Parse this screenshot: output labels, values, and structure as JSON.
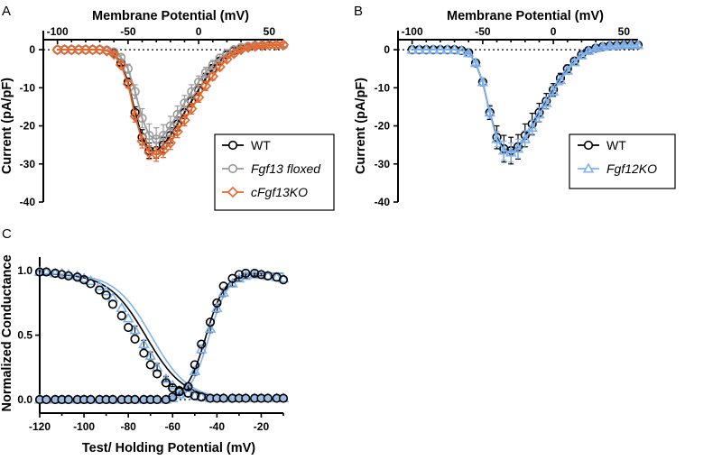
{
  "panel_letters": [
    "A",
    "B",
    "C"
  ],
  "colors": {
    "wt": "#000000",
    "floxed": "#9a9a9a",
    "cko": "#e8662a",
    "ko12": "#7fb2ee",
    "fill_c": "#9dbcdf"
  },
  "chart_data": [
    {
      "type": "line",
      "panel": "A",
      "xlabel": "Membrane Potential (mV)",
      "ylabel": "Current (pA/pF)",
      "xlim": [
        -110,
        60
      ],
      "ylim": [
        -40,
        5
      ],
      "xticks": [
        -100,
        -50,
        0,
        50
      ],
      "yticks": [
        0,
        -10,
        -20,
        -30,
        -40
      ],
      "x_axis_position": "top",
      "zero_line": "dotted",
      "legend": "bottom-right",
      "x": [
        -100,
        -95,
        -90,
        -85,
        -80,
        -75,
        -70,
        -65,
        -60,
        -55,
        -50,
        -45,
        -40,
        -35,
        -30,
        -25,
        -20,
        -15,
        -10,
        -5,
        0,
        5,
        10,
        15,
        20,
        25,
        30,
        35,
        40,
        45,
        50,
        55,
        60
      ],
      "series": [
        {
          "name": "WT",
          "marker": "circle",
          "color": "#000000",
          "values": [
            0,
            0,
            0,
            0,
            0,
            0,
            0,
            -0.2,
            -0.8,
            -3.5,
            -8.5,
            -16.5,
            -23,
            -26.5,
            -26.5,
            -25,
            -22.5,
            -19.5,
            -16.5,
            -13.5,
            -10.5,
            -7.5,
            -5,
            -3,
            -1.3,
            -0.2,
            0.4,
            0.8,
            1,
            1.1,
            1.2,
            1.2,
            1.2
          ],
          "errors": [
            0,
            0,
            0,
            0,
            0,
            0,
            0,
            0.1,
            0.3,
            0.6,
            1,
            1.5,
            2,
            2,
            2,
            2,
            2,
            1.8,
            1.6,
            1.5,
            1.4,
            1.3,
            1.1,
            0.9,
            0.8,
            0.7,
            0.6,
            0.5,
            0.5,
            0.5,
            0.5,
            0.5,
            0.5
          ]
        },
        {
          "name": "Fgf13 floxed",
          "marker": "circle",
          "color": "#9a9a9a",
          "values": [
            0,
            0,
            0,
            0,
            0,
            0,
            0,
            -0.1,
            -0.6,
            -2,
            -5,
            -11,
            -18,
            -22.5,
            -23.5,
            -22.5,
            -20,
            -17,
            -14,
            -11,
            -8.5,
            -6,
            -4,
            -2.2,
            -1,
            0,
            0.6,
            0.9,
            1.1,
            1.2,
            1.2,
            1.2,
            1.2
          ],
          "errors": [
            0,
            0,
            0,
            0,
            0,
            0,
            0,
            0.1,
            0.3,
            0.6,
            1.2,
            1.8,
            2.5,
            3,
            3,
            2.8,
            2.5,
            2.2,
            2,
            1.8,
            1.6,
            1.4,
            1.2,
            1,
            0.9,
            0.8,
            0.7,
            0.6,
            0.5,
            0.5,
            0.5,
            0.5,
            0.5
          ]
        },
        {
          "name": "cFgf13KO",
          "marker": "diamond",
          "color": "#e8662a",
          "values": [
            0,
            0,
            0,
            0,
            0,
            0,
            0,
            -0.3,
            -1.2,
            -4,
            -9,
            -17.5,
            -24,
            -27,
            -27.5,
            -26.5,
            -24.5,
            -21.5,
            -18.5,
            -15.5,
            -12.5,
            -9.5,
            -7,
            -4.5,
            -2.5,
            -1,
            0,
            0.6,
            0.9,
            1.1,
            1.2,
            1.2,
            1.3
          ],
          "errors": [
            0,
            0,
            0,
            0,
            0,
            0,
            0,
            0.1,
            0.3,
            0.6,
            1,
            1.5,
            1.8,
            1.8,
            1.8,
            1.8,
            1.7,
            1.6,
            1.5,
            1.4,
            1.3,
            1.2,
            1,
            0.9,
            0.8,
            0.7,
            0.6,
            0.5,
            0.5,
            0.5,
            0.5,
            0.5,
            0.5
          ]
        }
      ]
    },
    {
      "type": "line",
      "panel": "B",
      "xlabel": "Membrane Potential (mV)",
      "ylabel": "Current (pA/pF)",
      "xlim": [
        -110,
        60
      ],
      "ylim": [
        -40,
        5
      ],
      "xticks": [
        -100,
        -50,
        0,
        50
      ],
      "yticks": [
        0,
        -10,
        -20,
        -30,
        -40
      ],
      "x_axis_position": "top",
      "zero_line": "dotted",
      "legend": "bottom-right",
      "x": [
        -100,
        -95,
        -90,
        -85,
        -80,
        -75,
        -70,
        -65,
        -60,
        -55,
        -50,
        -45,
        -40,
        -35,
        -30,
        -25,
        -20,
        -15,
        -10,
        -5,
        0,
        5,
        10,
        15,
        20,
        25,
        30,
        35,
        40,
        45,
        50,
        55,
        60
      ],
      "series": [
        {
          "name": "WT",
          "marker": "circle",
          "color": "#000000",
          "values": [
            0,
            0,
            0,
            0,
            0,
            0,
            0,
            -0.2,
            -0.8,
            -3.5,
            -8.5,
            -16.5,
            -23,
            -26,
            -26.5,
            -25.5,
            -22.5,
            -19.5,
            -16.5,
            -13.5,
            -10.5,
            -7.5,
            -5,
            -3,
            -1.3,
            -0.2,
            0.4,
            0.8,
            1,
            1.1,
            1.2,
            1.2,
            1.2
          ],
          "errors": [
            0,
            0,
            0,
            0,
            0,
            0,
            0,
            0.1,
            0.3,
            0.6,
            1,
            1.8,
            3,
            3.5,
            3.5,
            3.2,
            3,
            2.8,
            2.4,
            2,
            1.6,
            1.3,
            1,
            0.8,
            0.7,
            0.6,
            0.5,
            0.5,
            0.5,
            0.5,
            0.5,
            0.5,
            0.5
          ]
        },
        {
          "name": "Fgf12KO",
          "marker": "triangle",
          "color": "#7fb2ee",
          "values": [
            0,
            0,
            0,
            0,
            0,
            0,
            0,
            -0.2,
            -0.9,
            -3.5,
            -8.5,
            -16.5,
            -23.5,
            -26.5,
            -27,
            -26,
            -23.5,
            -20.5,
            -17,
            -14,
            -11,
            -8,
            -5.5,
            -3.3,
            -1.5,
            -0.3,
            0.4,
            0.8,
            1,
            1.1,
            1.2,
            1.2,
            1.2
          ],
          "errors": [
            0,
            0,
            0,
            0,
            0,
            0,
            0,
            0.1,
            0.3,
            0.6,
            1,
            1.5,
            2,
            2.5,
            2.5,
            2.5,
            2.2,
            2,
            1.8,
            1.6,
            1.4,
            1.2,
            1,
            0.8,
            0.7,
            0.6,
            0.5,
            0.5,
            0.5,
            0.5,
            0.5,
            0.5,
            0.5
          ]
        }
      ]
    },
    {
      "type": "scatter",
      "panel": "C",
      "xlabel": "Test/ Holding Potential (mV)",
      "ylabel": "Normalized Conductance",
      "xlim": [
        -120,
        -10
      ],
      "ylim": [
        0,
        1.05
      ],
      "xticks": [
        -120,
        -100,
        -80,
        -60,
        -40,
        -20
      ],
      "yticks": [
        0.0,
        0.5,
        1.0
      ],
      "xtick_labels": [
        "-120",
        "-100",
        "-80",
        "-60",
        "-40",
        "-20"
      ],
      "ytick_labels": [
        "0.0",
        "0.5",
        "1.0"
      ],
      "zero_line": "dotted",
      "fits": [
        {
          "series": "WT",
          "kind": "inactivation",
          "v_half": -72,
          "k": 8.5
        },
        {
          "series": "Fgf12KO",
          "kind": "inactivation",
          "v_half": -69.5,
          "k": 8.3
        },
        {
          "series": "WT",
          "kind": "activation",
          "v_half": -45,
          "k": 4.3
        },
        {
          "series": "Fgf12KO",
          "kind": "activation",
          "v_half": -43.5,
          "k": 4.3
        }
      ],
      "inactivation": {
        "x": [
          -120,
          -117,
          -113,
          -110,
          -107,
          -103,
          -100,
          -97,
          -93,
          -90,
          -87,
          -83,
          -80,
          -77,
          -73,
          -70,
          -67,
          -63,
          -60,
          -57,
          -53,
          -50,
          -47,
          -43,
          -40,
          -37,
          -33,
          -30,
          -27,
          -23,
          -20,
          -17,
          -13,
          -10
        ],
        "series": [
          {
            "name": "WT",
            "marker": "circle",
            "color": "#000000",
            "values": [
              0.99,
              0.99,
              0.98,
              0.97,
              0.96,
              0.95,
              0.93,
              0.9,
              0.85,
              0.81,
              0.74,
              0.65,
              0.56,
              0.47,
              0.36,
              0.27,
              0.2,
              0.13,
              0.09,
              0.07,
              0.05,
              0.03,
              0.02,
              0.01,
              0.01,
              0.01,
              0.01,
              0.01,
              0.01,
              0.01,
              0.01,
              0.01,
              0.01,
              0.01
            ]
          },
          {
            "name": "Fgf12KO",
            "marker": "triangle",
            "color": "#7fb2ee",
            "values": [
              0.99,
              0.99,
              0.98,
              0.98,
              0.97,
              0.96,
              0.94,
              0.92,
              0.88,
              0.84,
              0.79,
              0.71,
              0.63,
              0.54,
              0.43,
              0.34,
              0.25,
              0.16,
              0.11,
              0.07,
              0.05,
              0.03,
              0.02,
              0.01,
              0.01,
              0.01,
              0.01,
              0.01,
              0.01,
              0.01,
              0.01,
              0.01,
              0.01,
              0.01
            ],
            "errors": [
              0,
              0,
              0,
              0,
              0,
              0,
              0,
              0,
              0,
              0,
              0,
              0,
              0,
              0.03,
              0.03,
              0.03,
              0.03,
              0.02,
              0.01,
              0,
              0,
              0,
              0,
              0,
              0,
              0,
              0,
              0,
              0,
              0,
              0,
              0,
              0,
              0
            ]
          }
        ]
      },
      "activation": {
        "x": [
          -120,
          -117,
          -113,
          -110,
          -107,
          -103,
          -100,
          -97,
          -93,
          -90,
          -87,
          -83,
          -80,
          -77,
          -73,
          -70,
          -67,
          -63,
          -60,
          -57,
          -53,
          -50,
          -47,
          -43,
          -40,
          -37,
          -33,
          -30,
          -27,
          -23,
          -20,
          -17,
          -13,
          -10
        ],
        "series": [
          {
            "name": "WT",
            "marker": "circle",
            "color": "#000000",
            "values": [
              0,
              0,
              0,
              0,
              0,
              0,
              0,
              0,
              0,
              0,
              0,
              0,
              0,
              0,
              0,
              0,
              0,
              0,
              0.02,
              0.06,
              0.1,
              0.27,
              0.43,
              0.6,
              0.75,
              0.88,
              0.94,
              0.97,
              0.98,
              0.98,
              0.97,
              0.96,
              0.95,
              0.93
            ]
          },
          {
            "name": "Fgf12KO",
            "marker": "triangle",
            "color": "#7fb2ee",
            "values": [
              0,
              0,
              0,
              0,
              0,
              0,
              0,
              0,
              0,
              0,
              0,
              0,
              0,
              0,
              0,
              0,
              0,
              0,
              0.01,
              0.04,
              0.09,
              0.22,
              0.39,
              0.55,
              0.71,
              0.83,
              0.9,
              0.94,
              0.96,
              0.97,
              0.97,
              0.96,
              0.95,
              0.94
            ],
            "errors": [
              0,
              0,
              0,
              0,
              0,
              0,
              0,
              0,
              0,
              0,
              0,
              0,
              0,
              0,
              0,
              0,
              0,
              0,
              0,
              0,
              0.02,
              0.03,
              0.03,
              0.03,
              0.03,
              0.03,
              0.02,
              0.02,
              0.02,
              0.01,
              0.01,
              0,
              0,
              0
            ]
          }
        ]
      }
    }
  ]
}
